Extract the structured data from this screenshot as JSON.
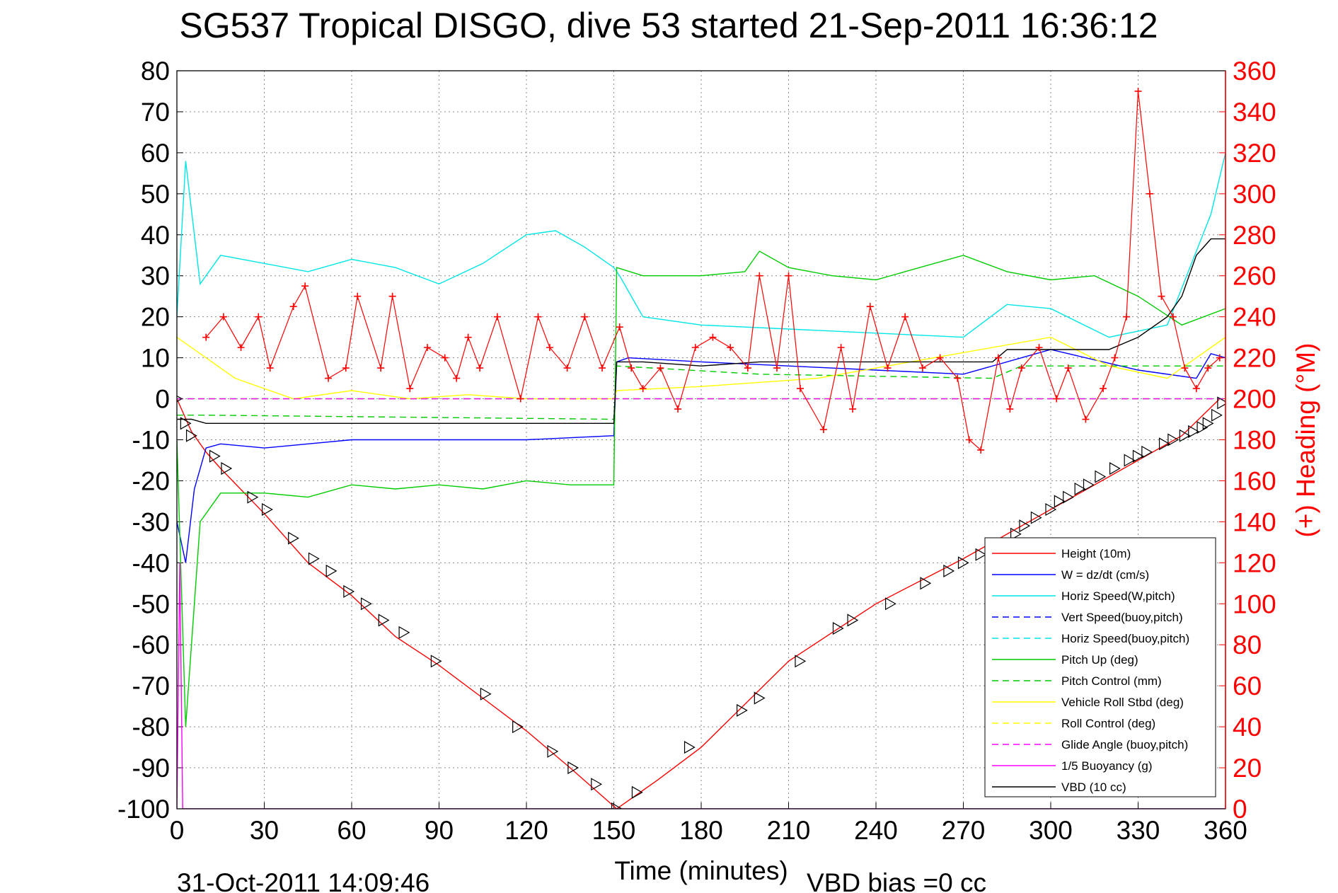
{
  "chart_data": {
    "type": "line",
    "title": "SG537 Tropical DISGO, dive 53 started 21-Sep-2011 16:36:12",
    "xlabel": "Time (minutes)",
    "ylabel_right": "(+) Heading (°M)",
    "footer_left": "31-Oct-2011 14:09:46",
    "footer_right": "VBD bias =0 cc",
    "xlim": [
      0,
      360
    ],
    "ylim": [
      -100,
      80
    ],
    "ylim_right": [
      0,
      360
    ],
    "x_ticks": [
      0,
      30,
      60,
      90,
      120,
      150,
      180,
      210,
      240,
      270,
      300,
      330,
      360
    ],
    "y_ticks": [
      80,
      70,
      60,
      50,
      40,
      30,
      20,
      10,
      0,
      -10,
      -20,
      -30,
      -40,
      -50,
      -60,
      -70,
      -80,
      -90,
      -100
    ],
    "y_ticks_right": [
      360,
      340,
      320,
      300,
      280,
      260,
      240,
      220,
      200,
      180,
      160,
      140,
      120,
      100,
      80,
      60,
      40,
      20,
      0
    ],
    "grid": true,
    "colors": {
      "height": "#ff0000",
      "w": "#0000ff",
      "horiz_w": "#00e6e6",
      "vert_buoy": "#0000ff",
      "horiz_buoy": "#00e6e6",
      "pitch": "#00cc00",
      "pitch_ctrl": "#00cc00",
      "roll": "#ffff00",
      "roll_ctrl": "#ffff00",
      "glide": "#ff00ff",
      "buoyancy": "#ff00ff",
      "vbd": "#000000",
      "heading": "#ff0000",
      "right_axis": "#ff0000"
    },
    "legend_position": "bottom-right",
    "legend": [
      {
        "key": "height",
        "label": "Height (10m)",
        "dash": false
      },
      {
        "key": "w",
        "label": "W = dz/dt (cm/s)",
        "dash": false
      },
      {
        "key": "horiz_w",
        "label": "Horiz Speed(W,pitch)",
        "dash": false
      },
      {
        "key": "vert_buoy",
        "label": "Vert Speed(buoy,pitch)",
        "dash": true
      },
      {
        "key": "horiz_buoy",
        "label": "Horiz Speed(buoy,pitch)",
        "dash": true
      },
      {
        "key": "pitch",
        "label": "Pitch Up (deg)",
        "dash": false
      },
      {
        "key": "pitch_ctrl",
        "label": "Pitch Control (mm)",
        "dash": true
      },
      {
        "key": "roll",
        "label": "Vehicle Roll Stbd (deg)",
        "dash": false
      },
      {
        "key": "roll_ctrl",
        "label": "Roll Control (deg)",
        "dash": true
      },
      {
        "key": "glide",
        "label": "Glide Angle (buoy,pitch)",
        "dash": true
      },
      {
        "key": "buoyancy",
        "label": "1/5 Buoyancy (g)",
        "dash": false
      },
      {
        "key": "vbd",
        "label": "VBD (10 cc)",
        "dash": false
      }
    ],
    "series": [
      {
        "key": "height",
        "x": [
          0,
          5,
          10,
          15,
          30,
          45,
          60,
          75,
          90,
          105,
          120,
          135,
          151,
          165,
          180,
          210,
          240,
          270,
          300,
          330,
          345,
          358
        ],
        "values": [
          0,
          -8,
          -13,
          -17,
          -28,
          -40,
          -48,
          -58,
          -65,
          -73,
          -81,
          -90,
          -100,
          -93,
          -85,
          -64,
          -50,
          -39,
          -27,
          -15,
          -9,
          0
        ]
      },
      {
        "key": "w",
        "x": [
          0,
          3,
          6,
          10,
          15,
          30,
          45,
          60,
          75,
          90,
          120,
          150,
          151,
          155,
          180,
          210,
          240,
          270,
          290,
          300,
          330,
          350,
          355,
          360
        ],
        "values": [
          -30,
          -40,
          -22,
          -12,
          -11,
          -12,
          -11,
          -10,
          -10,
          -10,
          -10,
          -9,
          9,
          10,
          9,
          8,
          7,
          6,
          10,
          12,
          7,
          5,
          11,
          10
        ]
      },
      {
        "key": "horiz_w",
        "x": [
          0,
          3,
          8,
          15,
          30,
          45,
          60,
          75,
          90,
          105,
          120,
          130,
          140,
          150,
          152,
          160,
          180,
          210,
          240,
          270,
          285,
          300,
          320,
          340,
          355,
          360
        ],
        "values": [
          20,
          58,
          28,
          35,
          33,
          31,
          34,
          32,
          28,
          33,
          40,
          41,
          37,
          32,
          30,
          20,
          18,
          17,
          16,
          15,
          23,
          22,
          15,
          18,
          45,
          60
        ]
      },
      {
        "key": "vert_buoy",
        "x": [
          0,
          360
        ],
        "values": [
          0,
          0
        ]
      },
      {
        "key": "horiz_buoy",
        "x": [
          0,
          360
        ],
        "values": [
          0,
          0
        ]
      },
      {
        "key": "pitch",
        "x": [
          0,
          3,
          8,
          15,
          30,
          45,
          60,
          75,
          90,
          105,
          120,
          135,
          150,
          151,
          160,
          180,
          195,
          200,
          210,
          225,
          240,
          260,
          270,
          285,
          300,
          315,
          330,
          345,
          360
        ],
        "values": [
          -10,
          -80,
          -30,
          -23,
          -23,
          -24,
          -21,
          -22,
          -21,
          -22,
          -20,
          -21,
          -21,
          32,
          30,
          30,
          31,
          36,
          32,
          30,
          29,
          33,
          35,
          31,
          29,
          30,
          25,
          18,
          22
        ]
      },
      {
        "key": "pitch_ctrl",
        "x": [
          0,
          10,
          150,
          151,
          200,
          280,
          290,
          360
        ],
        "values": [
          -4,
          -4,
          -5,
          8,
          6,
          5,
          8,
          8
        ]
      },
      {
        "key": "roll",
        "x": [
          0,
          20,
          40,
          60,
          80,
          100,
          120,
          150,
          151,
          180,
          220,
          260,
          300,
          320,
          340,
          360
        ],
        "values": [
          15,
          5,
          0,
          2,
          0,
          1,
          0,
          0,
          2,
          3,
          5,
          10,
          15,
          8,
          5,
          15
        ]
      },
      {
        "key": "roll_ctrl",
        "x": [
          0,
          150,
          151,
          360
        ],
        "values": [
          0,
          0,
          0,
          0
        ]
      },
      {
        "key": "glide",
        "x": [
          0,
          360
        ],
        "values": [
          0,
          0
        ]
      },
      {
        "key": "buoyancy",
        "x": [
          0,
          1,
          2,
          360
        ],
        "values": [
          -100,
          -40,
          -100,
          -100
        ]
      },
      {
        "key": "vbd",
        "x": [
          0,
          5,
          10,
          150,
          151,
          160,
          180,
          200,
          240,
          280,
          285,
          290,
          300,
          320,
          330,
          340,
          345,
          350,
          355,
          360
        ],
        "values": [
          -5,
          -5,
          -6,
          -6,
          9,
          9,
          8,
          9,
          9,
          9,
          12,
          12,
          12,
          12,
          15,
          20,
          25,
          35,
          39,
          39
        ]
      }
    ],
    "dive_markers": {
      "x": [
        0,
        3,
        5,
        13,
        17,
        26,
        31,
        40,
        47,
        53,
        59,
        65,
        71,
        78,
        89,
        106,
        117,
        129,
        136,
        144,
        151,
        158,
        176,
        194,
        200,
        214,
        227,
        232,
        245,
        257,
        265,
        270,
        276,
        280,
        288,
        291,
        295,
        300,
        303,
        306,
        310,
        313,
        317,
        322,
        327,
        330,
        333,
        339,
        342,
        346,
        349,
        352,
        354,
        357,
        359
      ],
      "values": [
        0,
        -6,
        -9,
        -14,
        -17,
        -24,
        -27,
        -34,
        -39,
        -42,
        -47,
        -50,
        -54,
        -57,
        -64,
        -72,
        -80,
        -86,
        -90,
        -94,
        -100,
        -96,
        -85,
        -76,
        -73,
        -64,
        -56,
        -54,
        -50,
        -45,
        -42,
        -40,
        -38,
        -37,
        -33,
        -31,
        -29,
        -27,
        -25,
        -24,
        -22,
        -21,
        -19,
        -17,
        -15,
        -14,
        -13,
        -11,
        -10,
        -9,
        -8,
        -7,
        -6,
        -4,
        -1
      ]
    },
    "heading_series": {
      "x": [
        10,
        16,
        22,
        28,
        32,
        40,
        44,
        52,
        58,
        62,
        70,
        74,
        80,
        86,
        92,
        96,
        100,
        104,
        110,
        118,
        124,
        128,
        134,
        140,
        146,
        152,
        156,
        160,
        166,
        172,
        178,
        184,
        190,
        196,
        200,
        206,
        210,
        214,
        222,
        228,
        232,
        238,
        244,
        250,
        256,
        262,
        268,
        272,
        276,
        282,
        286,
        290,
        296,
        302,
        306,
        312,
        318,
        322,
        326,
        330,
        334,
        338,
        342,
        346,
        350,
        354,
        358
      ],
      "values": [
        230,
        240,
        225,
        240,
        215,
        245,
        255,
        210,
        215,
        250,
        215,
        250,
        205,
        225,
        220,
        210,
        230,
        215,
        240,
        200,
        240,
        225,
        215,
        240,
        215,
        235,
        215,
        205,
        215,
        195,
        225,
        230,
        225,
        215,
        260,
        215,
        260,
        205,
        185,
        225,
        195,
        245,
        215,
        240,
        215,
        220,
        210,
        180,
        175,
        220,
        195,
        215,
        225,
        200,
        215,
        190,
        205,
        220,
        240,
        350,
        300,
        250,
        240,
        215,
        205,
        215,
        220
      ]
    }
  }
}
